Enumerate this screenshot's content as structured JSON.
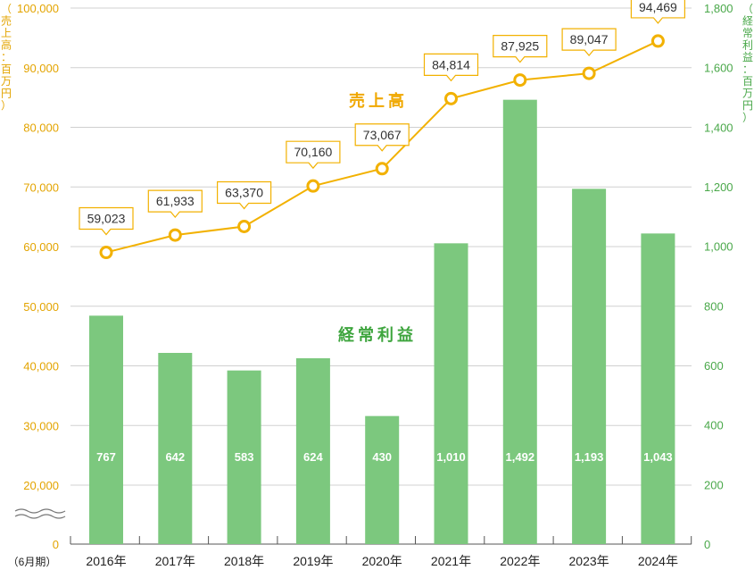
{
  "chart_data": {
    "type": "bar+line",
    "categories": [
      "2016年",
      "2017年",
      "2018年",
      "2019年",
      "2020年",
      "2021年",
      "2022年",
      "2023年",
      "2024年"
    ],
    "x_prefix": "（6月期）",
    "series": [
      {
        "name": "売上高",
        "type": "line",
        "axis": "left",
        "values": [
          59023,
          61933,
          63370,
          70160,
          73067,
          84814,
          87925,
          89047,
          94469
        ],
        "labels": [
          "59,023",
          "61,933",
          "63,370",
          "70,160",
          "73,067",
          "84,814",
          "87,925",
          "89,047",
          "94,469"
        ]
      },
      {
        "name": "経常利益",
        "type": "bar",
        "axis": "right",
        "values": [
          767,
          642,
          583,
          624,
          430,
          1010,
          1492,
          1193,
          1043
        ],
        "labels": [
          "767",
          "642",
          "583",
          "624",
          "430",
          "1,010",
          "1,492",
          "1,193",
          "1,043"
        ]
      }
    ],
    "left_axis": {
      "label": "（売上高：百万円）",
      "ticks": [
        "0",
        "20,000",
        "30,000",
        "40,000",
        "50,000",
        "60,000",
        "70,000",
        "80,000",
        "90,000",
        "100,000"
      ],
      "tick_values": [
        0,
        20000,
        30000,
        40000,
        50000,
        60000,
        70000,
        80000,
        90000,
        100000
      ],
      "axis_break": true
    },
    "right_axis": {
      "label": "（経常利益：百万円）",
      "ticks": [
        "0",
        "200",
        "400",
        "600",
        "800",
        "1,000",
        "1,200",
        "1,400",
        "1,600",
        "1,800"
      ],
      "ylim": [
        0,
        1800
      ]
    },
    "colors": {
      "line": "#f2b100",
      "bar": "#7cc87e",
      "bar_title": "#3ea53e",
      "line_title": "#f0a800"
    }
  }
}
